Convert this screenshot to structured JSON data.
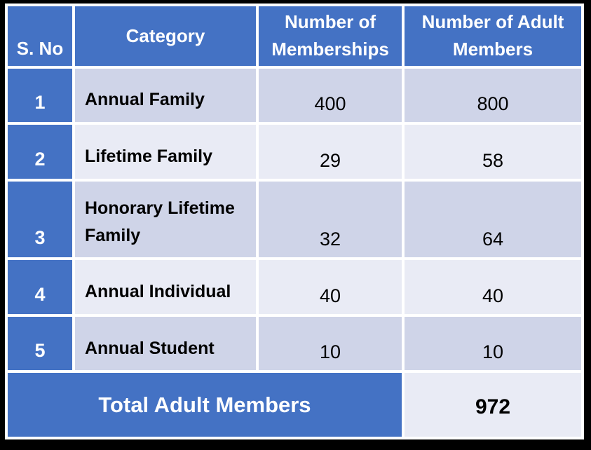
{
  "colors": {
    "header_bg": "#4472C4",
    "serial_col_bg": "#4472C4",
    "band_dark": "#CFD4E8",
    "band_light": "#E9EBF5",
    "gridline": "#FFFFFF",
    "outer_border": "#000000",
    "header_text": "#FFFFFF",
    "body_text": "#000000"
  },
  "table": {
    "headers": [
      "S. No",
      "Category",
      "Number of Memberships",
      "Number of Adult Members"
    ],
    "rows": [
      {
        "sno": "1",
        "category": "Annual Family",
        "memberships": "400",
        "adult_members": "800"
      },
      {
        "sno": "2",
        "category": "Lifetime Family",
        "memberships": "29",
        "adult_members": "58"
      },
      {
        "sno": "3",
        "category": "Honorary Lifetime Family",
        "memberships": "32",
        "adult_members": "64"
      },
      {
        "sno": "4",
        "category": "Annual Individual",
        "memberships": "40",
        "adult_members": "40"
      },
      {
        "sno": "5",
        "category": "Annual Student",
        "memberships": "10",
        "adult_members": "10"
      }
    ],
    "footer": {
      "label": "Total Adult Members",
      "value": "972"
    }
  },
  "chart_data": {
    "type": "table",
    "columns": [
      "S. No",
      "Category",
      "Number of Memberships",
      "Number of Adult Members"
    ],
    "rows": [
      [
        "1",
        "Annual Family",
        400,
        800
      ],
      [
        "2",
        "Lifetime Family",
        29,
        58
      ],
      [
        "3",
        "Honorary Lifetime Family",
        32,
        64
      ],
      [
        "4",
        "Annual Individual",
        40,
        40
      ],
      [
        "5",
        "Annual Student",
        10,
        10
      ]
    ],
    "footer": [
      "Total Adult Members",
      972
    ]
  }
}
